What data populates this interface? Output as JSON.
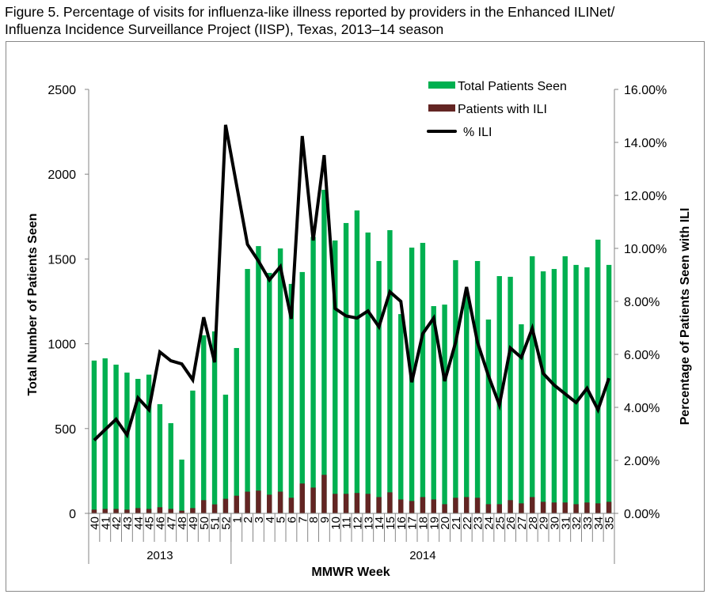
{
  "figure_title": "Figure 5.  Percentage of visits for influenza-like illness reported by providers in the Enhanced ILINet/\nInfluenza Incidence Surveillance Project (IISP), Texas, 2013–14 season",
  "chart_data": {
    "type": "bar+line",
    "xlabel": "MMWR  Week",
    "ylabel": "Total Number  of Patients  Seen",
    "y2label": "Percentage  of Patients Seen with ILI",
    "ylim": [
      0,
      2500
    ],
    "y2lim": [
      0,
      16
    ],
    "yticks": [
      "0",
      "500",
      "1000",
      "1500",
      "2000",
      "2500"
    ],
    "y2ticks": [
      "0.00%",
      "2.00%",
      "4.00%",
      "6.00%",
      "8.00%",
      "10.00%",
      "12.00%",
      "14.00%",
      "16.00%"
    ],
    "grid": false,
    "legend_position": "top-right",
    "year_groups": [
      {
        "label": "2013",
        "count": 13
      },
      {
        "label": "2014",
        "count": 35
      }
    ],
    "categories": [
      "40",
      "41",
      "42",
      "43",
      "44",
      "45",
      "46",
      "47",
      "48",
      "49",
      "50",
      "51",
      "52",
      "1",
      "2",
      "3",
      "4",
      "5",
      "6",
      "7",
      "8",
      "9",
      "10",
      "11",
      "12",
      "13",
      "14",
      "15",
      "16",
      "17",
      "18",
      "19",
      "20",
      "21",
      "22",
      "23",
      "24",
      "25",
      "26",
      "27",
      "28",
      "29",
      "30",
      "31",
      "32",
      "33",
      "34",
      "35"
    ],
    "series": [
      {
        "name": "Total Patients Seen",
        "type": "bar",
        "color": "#00b050",
        "values": [
          901,
          914,
          877,
          830,
          793,
          818,
          644,
          532,
          317,
          724,
          1050,
          1073,
          700,
          975,
          1441,
          1576,
          1418,
          1562,
          1353,
          1423,
          1630,
          1908,
          1609,
          1712,
          1786,
          1656,
          1488,
          1670,
          1175,
          1567,
          1595,
          1222,
          1231,
          1493,
          1300,
          1488,
          1143,
          1399,
          1395,
          1115,
          1516,
          1427,
          1441,
          1516,
          1465,
          1451,
          1614,
          1465
        ]
      },
      {
        "name": "Patients with ILI",
        "type": "bar",
        "color": "#632523",
        "values": [
          22,
          26,
          26,
          22,
          31,
          26,
          36,
          26,
          16,
          31,
          78,
          53,
          86,
          104,
          128,
          134,
          110,
          128,
          92,
          176,
          152,
          227,
          115,
          115,
          120,
          115,
          96,
          124,
          82,
          73,
          96,
          82,
          54,
          92,
          96,
          92,
          54,
          54,
          78,
          59,
          96,
          68,
          64,
          64,
          54,
          64,
          59,
          68
        ]
      },
      {
        "name": "% ILI",
        "type": "line",
        "axis": "right",
        "color": "#000000",
        "values": [
          2.76,
          3.16,
          3.55,
          2.96,
          4.36,
          3.91,
          6.09,
          5.76,
          5.64,
          5.04,
          7.4,
          5.7,
          14.66,
          12.4,
          10.15,
          9.52,
          8.81,
          9.31,
          7.34,
          14.24,
          10.3,
          13.52,
          7.73,
          7.45,
          7.37,
          7.64,
          7.04,
          8.36,
          8.0,
          4.95,
          6.78,
          7.37,
          4.99,
          6.45,
          8.54,
          6.45,
          5.19,
          4.09,
          6.24,
          5.88,
          6.98,
          5.28,
          4.84,
          4.51,
          4.18,
          4.72,
          3.91,
          5.1
        ]
      }
    ]
  }
}
